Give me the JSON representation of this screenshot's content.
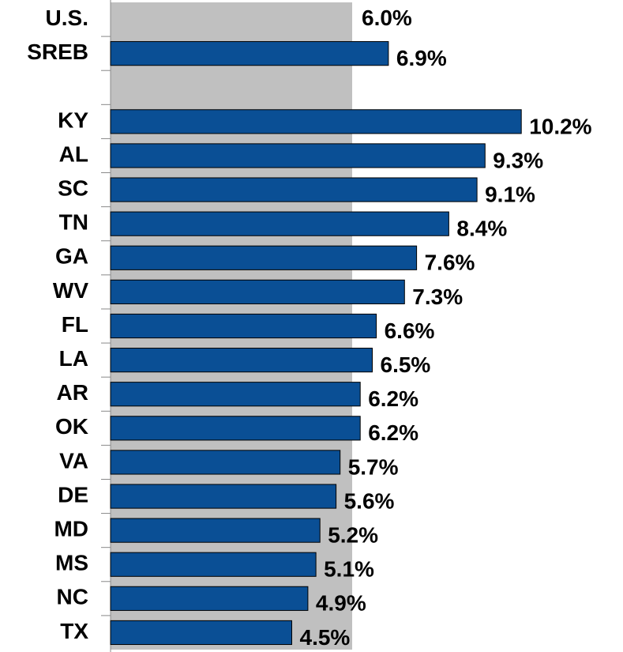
{
  "chart_data": {
    "type": "bar",
    "orientation": "horizontal",
    "reference": {
      "name": "U.S.",
      "value": 6.0,
      "value_label": "6.0%",
      "color": "#c0c0c0"
    },
    "categories": [
      "SREB",
      null,
      "KY",
      "AL",
      "SC",
      "TN",
      "GA",
      "WV",
      "FL",
      "LA",
      "AR",
      "OK",
      "VA",
      "DE",
      "MD",
      "MS",
      "NC",
      "TX"
    ],
    "values": [
      6.9,
      null,
      10.2,
      9.3,
      9.1,
      8.4,
      7.6,
      7.3,
      6.6,
      6.5,
      6.2,
      6.2,
      5.7,
      5.6,
      5.2,
      5.1,
      4.9,
      4.5
    ],
    "value_labels": [
      "6.9%",
      null,
      "10.2%",
      "9.3%",
      "9.1%",
      "8.4%",
      "7.6%",
      "7.3%",
      "6.6%",
      "6.5%",
      "6.2%",
      "6.2%",
      "5.7%",
      "5.6%",
      "5.2%",
      "5.1%",
      "4.9%",
      "4.5%"
    ],
    "color": "#0a4f95",
    "xlim": [
      0,
      12
    ]
  }
}
